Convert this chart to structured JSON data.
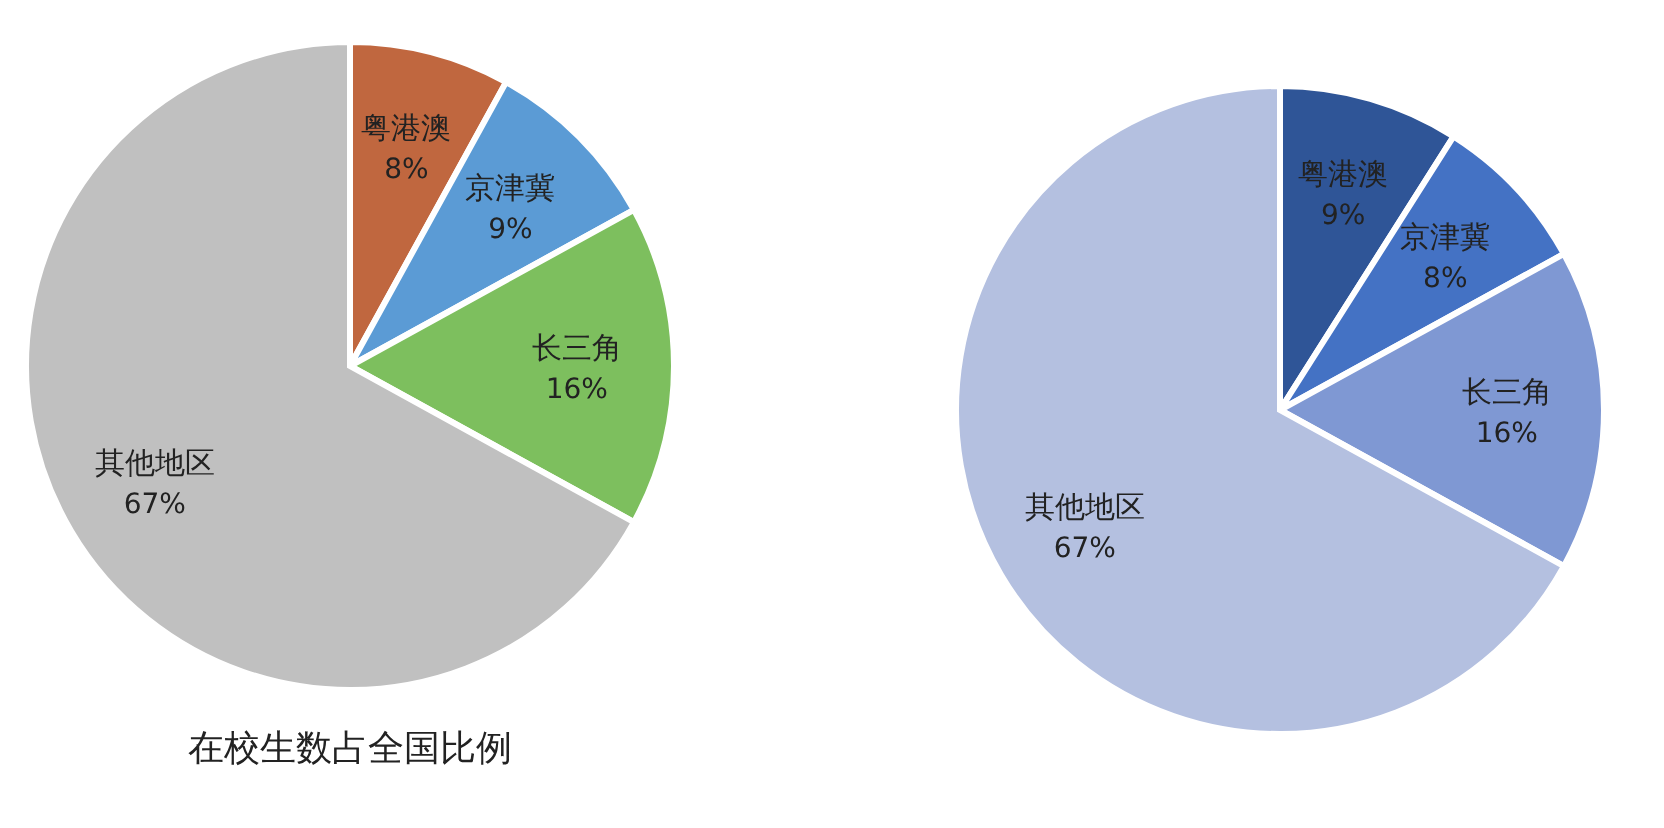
{
  "chart_data": [
    {
      "type": "pie",
      "title": "在校生数占全国比例",
      "categories": [
        "粤港澳",
        "京津冀",
        "长三角",
        "其他地区"
      ],
      "values": [
        8,
        9,
        16,
        67
      ],
      "value_labels": [
        "8%",
        "9%",
        "16%",
        "67%"
      ],
      "colors": [
        "#c0673f",
        "#5b9bd5",
        "#7dbf5e",
        "#c0c0c0"
      ]
    },
    {
      "type": "pie",
      "categories": [
        "粤港澳",
        "京津冀",
        "长三角",
        "其他地区"
      ],
      "values": [
        9,
        8,
        16,
        67
      ],
      "value_labels": [
        "9%",
        "8%",
        "16%",
        "67%"
      ],
      "colors": [
        "#2f5597",
        "#4472c4",
        "#7f98d3",
        "#b4c0e0"
      ]
    }
  ]
}
